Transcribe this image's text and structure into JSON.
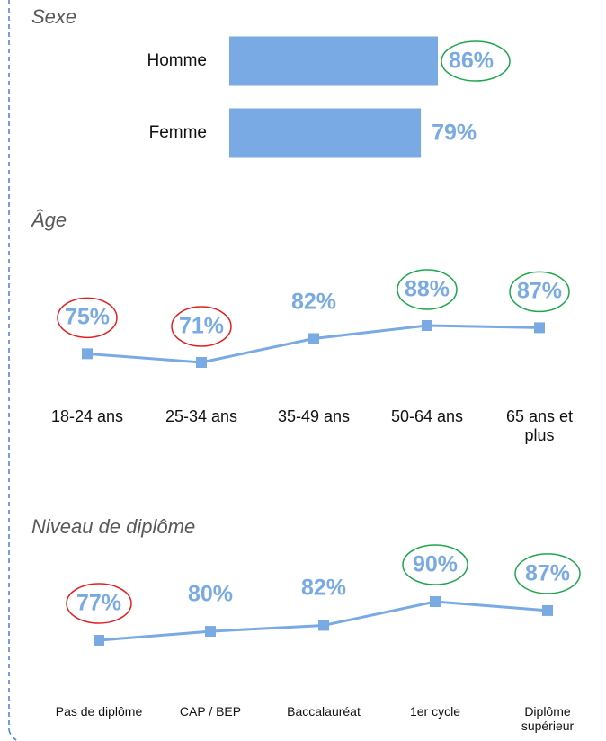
{
  "chart_data": [
    {
      "type": "barh",
      "title": "Sexe",
      "categories": [
        "Homme",
        "Femme"
      ],
      "values": [
        86,
        79
      ],
      "value_labels": [
        "86%",
        "79%"
      ],
      "color": "#7aaae4",
      "label_circles": [
        "#1ea64f",
        null
      ]
    },
    {
      "type": "line",
      "title": "Âge",
      "categories": [
        "18-24 ans",
        "25-34 ans",
        "35-49 ans",
        "50-64 ans",
        "65 ans et plus"
      ],
      "values": [
        75,
        71,
        82,
        88,
        87
      ],
      "value_labels": [
        "75%",
        "71%",
        "82%",
        "88%",
        "87%"
      ],
      "color": "#7aaae4",
      "label_circles": [
        "#e02020",
        "#e02020",
        null,
        "#1ea64f",
        "#1ea64f"
      ]
    },
    {
      "type": "line",
      "title": "Niveau de diplôme",
      "categories": [
        "Pas de diplôme",
        "CAP / BEP",
        "Baccalauréat",
        "1er cycle",
        "Diplôme supérieur"
      ],
      "values": [
        77,
        80,
        82,
        90,
        87
      ],
      "value_labels": [
        "77%",
        "80%",
        "82%",
        "90%",
        "87%"
      ],
      "color": "#7aaae4",
      "label_circles": [
        "#e02020",
        null,
        null,
        "#1ea64f",
        "#1ea64f"
      ]
    }
  ]
}
